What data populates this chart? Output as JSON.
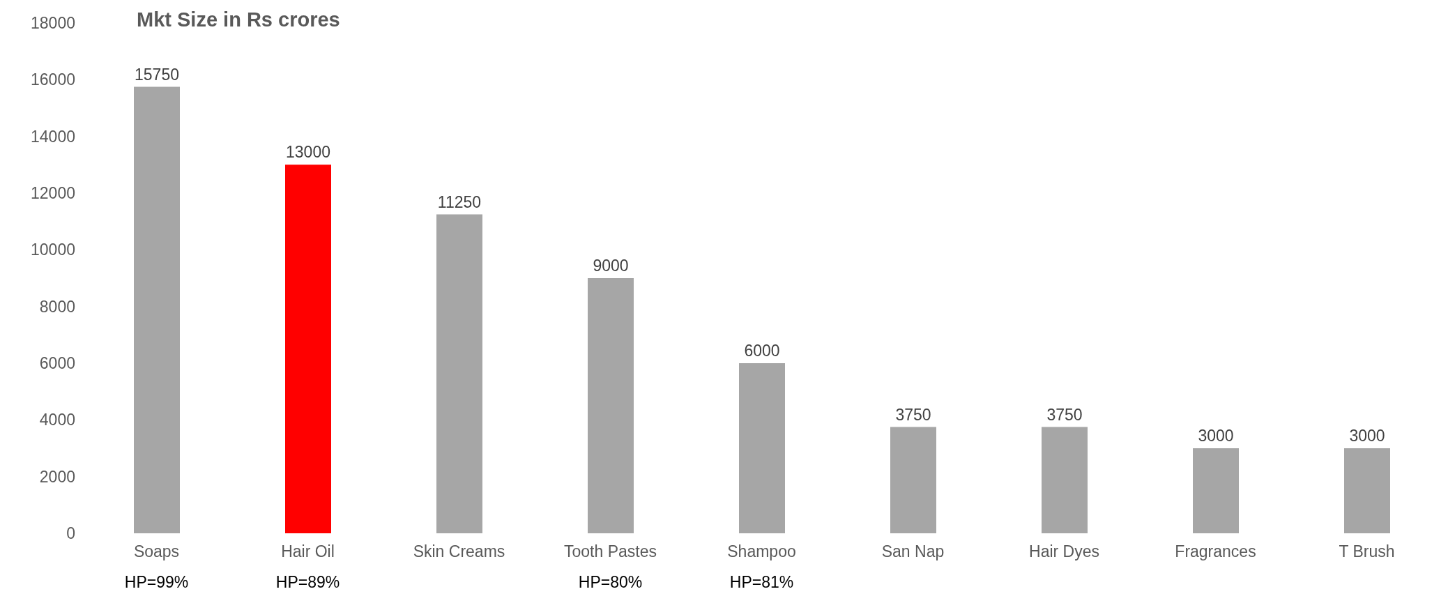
{
  "chart_data": {
    "type": "bar",
    "title": "Mkt Size in Rs crores",
    "categories": [
      "Soaps",
      "Hair Oil",
      "Skin Creams",
      "Tooth Pastes",
      "Shampoo",
      "San Nap",
      "Hair Dyes",
      "Fragrances",
      "T Brush"
    ],
    "values": [
      15750,
      13000,
      11250,
      9000,
      6000,
      3750,
      3750,
      3000,
      3000
    ],
    "colors": [
      "#a6a6a6",
      "#ff0000",
      "#a6a6a6",
      "#a6a6a6",
      "#a6a6a6",
      "#a6a6a6",
      "#a6a6a6",
      "#a6a6a6",
      "#a6a6a6"
    ],
    "ylim": [
      0,
      18000
    ],
    "yticks": [
      0,
      2000,
      4000,
      6000,
      8000,
      10000,
      12000,
      14000,
      16000,
      18000
    ],
    "grid": false,
    "legend": false,
    "data_labels": true,
    "annotations": [
      "HP=99%",
      "HP=89%",
      "HP=80%",
      "HP=81%"
    ]
  }
}
